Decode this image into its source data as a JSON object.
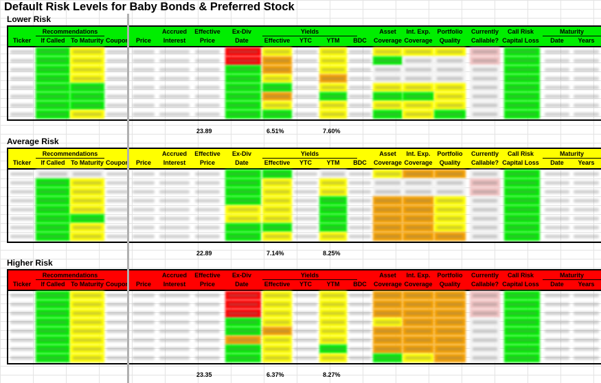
{
  "title": "Default Risk Levels for Baby Bonds & Preferred Stock",
  "headers": {
    "recommendations": "Recommendations",
    "if_called": "If Called",
    "to_maturity": "To Maturity",
    "ticker": "Ticker",
    "coupon": "Coupon",
    "price": "Price",
    "accrued_1": "Accrued",
    "accrued_2": "Interest",
    "effective_1": "Effective",
    "effective_2": "Price",
    "exdiv_1": "Ex-Div",
    "exdiv_2": "Date",
    "yields": "Yields",
    "y_effective": "Effective",
    "y_ytc": "YTC",
    "y_ytm": "YTM",
    "bdc": "BDC",
    "asset_1": "Asset",
    "asset_2": "Coverage",
    "intexp_1": "Int. Exp.",
    "intexp_2": "Coverage",
    "portfolio_1": "Portfolio",
    "portfolio_2": "Quality",
    "callable_1": "Currently",
    "callable_2": "Callable?",
    "callrisk_1": "Call Risk",
    "callrisk_2": "Capital Loss",
    "maturity": "Maturity",
    "m_date": "Date",
    "m_years": "Years"
  },
  "colors": {
    "green": "#00ee00",
    "yellow": "#ffff00",
    "red": "#ff0000",
    "orange": "#f5a000",
    "pink": "#f2c4c4",
    "gray": "#f2f2f2"
  },
  "sections": [
    {
      "label": "Lower Risk",
      "header_color": "#00ee00",
      "totals": {
        "effective_price": "23.89",
        "effective_yield": "6.51%",
        "ytm": "7.60%"
      }
    },
    {
      "label": "Average Risk",
      "header_color": "#ffff00",
      "totals": {
        "effective_price": "22.89",
        "effective_yield": "7.14%",
        "ytm": "8.25%"
      }
    },
    {
      "label": "Higher Risk",
      "header_color": "#ff0000",
      "totals": {
        "effective_price": "23.35",
        "effective_yield": "6.37%",
        "ytm": "8.27%"
      }
    }
  ]
}
